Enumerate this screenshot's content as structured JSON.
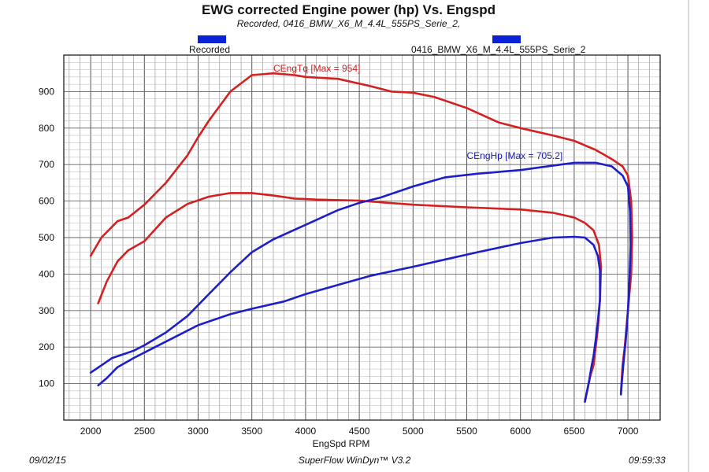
{
  "chart_data": {
    "type": "line",
    "title": "EWG corrected Engine power (hp) Vs. Engspd",
    "subtitle": "Recorded, 0416_BMW_X6_M_4.4L_555PS_Serie_2,",
    "xlabel": "EngSpd RPM",
    "ylabel": "",
    "xlim": [
      1750,
      7300
    ],
    "ylim": [
      0,
      1000
    ],
    "x_ticks": [
      "2000",
      "2500",
      "3000",
      "3500",
      "4000",
      "4500",
      "5000",
      "5500",
      "6000",
      "6500",
      "7000"
    ],
    "y_ticks": [
      "100",
      "200",
      "300",
      "400",
      "500",
      "600",
      "700",
      "800",
      "900"
    ],
    "grid": true,
    "legend": [
      {
        "name": "Recorded",
        "color": "#0a22d6"
      },
      {
        "name": "0416_BMW_X6_M_4.4L_555PS_Serie_2",
        "color": "#0a22d6"
      }
    ],
    "annotations": [
      {
        "text": "CEngTq [Max = 954]",
        "color": "#cc2222",
        "x": 3700,
        "y": 955
      },
      {
        "text": "CEngHp [Max = 705.2]",
        "color": "#1a1aa8",
        "x": 5500,
        "y": 715
      }
    ],
    "series": [
      {
        "name": "CEngTq (0416_BMW_X6_M_4.4L_555PS_Serie_2)",
        "color": "#d42020",
        "x": [
          2000,
          2100,
          2200,
          2250,
          2350,
          2500,
          2700,
          2900,
          3000,
          3100,
          3300,
          3500,
          3700,
          3900,
          4000,
          4300,
          4600,
          4800,
          5000,
          5200,
          5500,
          5800,
          6000,
          6300,
          6500,
          6700,
          6850,
          6950,
          7000,
          7030,
          7040,
          7030,
          7000,
          6970,
          6950,
          6940,
          6935
        ],
        "y": [
          450,
          500,
          530,
          545,
          555,
          590,
          650,
          725,
          775,
          820,
          900,
          945,
          950,
          945,
          940,
          935,
          915,
          900,
          897,
          885,
          855,
          815,
          800,
          780,
          765,
          740,
          715,
          695,
          670,
          600,
          500,
          400,
          300,
          200,
          150,
          100,
          75
        ]
      },
      {
        "name": "CEngTq (Recorded)",
        "color": "#d42020",
        "x": [
          2070,
          2150,
          2250,
          2350,
          2500,
          2700,
          2900,
          3100,
          3300,
          3500,
          3700,
          3900,
          4100,
          4500,
          5000,
          5500,
          6000,
          6300,
          6500,
          6600,
          6680,
          6730,
          6750,
          6740,
          6720,
          6700,
          6680,
          6650,
          6620,
          6600
        ],
        "y": [
          320,
          380,
          435,
          465,
          490,
          555,
          592,
          612,
          622,
          622,
          615,
          607,
          604,
          601,
          590,
          583,
          577,
          568,
          555,
          540,
          520,
          480,
          420,
          330,
          250,
          200,
          150,
          120,
          80,
          55
        ]
      },
      {
        "name": "CEngHp (0416_BMW_X6_M_4.4L_555PS_Serie_2)",
        "color": "#1e1ec8",
        "x": [
          2000,
          2100,
          2200,
          2300,
          2400,
          2500,
          2700,
          2900,
          3100,
          3300,
          3500,
          3700,
          4000,
          4300,
          4500,
          4700,
          5000,
          5300,
          5600,
          6000,
          6300,
          6500,
          6700,
          6850,
          6950,
          7000,
          7020,
          7025,
          7015,
          7000,
          6980,
          6960,
          6945,
          6935
        ],
        "y": [
          130,
          150,
          170,
          180,
          190,
          205,
          240,
          285,
          345,
          405,
          460,
          495,
          535,
          575,
          595,
          610,
          640,
          665,
          675,
          685,
          697,
          705,
          705,
          695,
          670,
          640,
          570,
          480,
          390,
          300,
          220,
          160,
          110,
          70
        ]
      },
      {
        "name": "CEngHp (Recorded)",
        "color": "#1e1ec8",
        "x": [
          2070,
          2150,
          2250,
          2400,
          2600,
          2800,
          3000,
          3300,
          3500,
          3800,
          4000,
          4300,
          4600,
          5000,
          5300,
          5600,
          6000,
          6300,
          6500,
          6600,
          6680,
          6720,
          6740,
          6740,
          6720,
          6700,
          6680,
          6660,
          6640,
          6620,
          6600
        ],
        "y": [
          95,
          115,
          145,
          170,
          200,
          230,
          260,
          290,
          305,
          325,
          345,
          370,
          395,
          420,
          440,
          460,
          485,
          500,
          502,
          500,
          480,
          450,
          410,
          330,
          270,
          220,
          175,
          145,
          110,
          80,
          50
        ]
      }
    ]
  },
  "footer": {
    "date": "09/02/15",
    "software": "SuperFlow WinDyn™ V3.2",
    "time": "09:59:33"
  }
}
